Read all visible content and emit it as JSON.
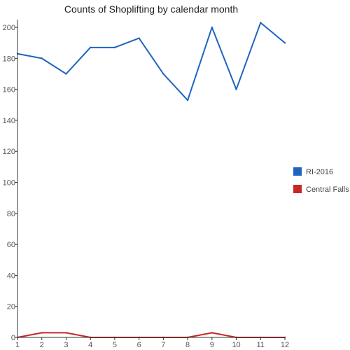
{
  "chart_data": {
    "type": "line",
    "title": "Counts of Shoplifting by calendar month",
    "xlabel": "",
    "ylabel": "",
    "x": [
      1,
      2,
      3,
      4,
      5,
      6,
      7,
      8,
      9,
      10,
      11,
      12
    ],
    "x_tick_labels": [
      "1",
      "2",
      "3",
      "4",
      "5",
      "6",
      "7",
      "8",
      "9",
      "10",
      "11",
      "12"
    ],
    "ylim": [
      0,
      205
    ],
    "y_ticks": [
      0,
      20,
      40,
      60,
      80,
      100,
      120,
      140,
      160,
      180,
      200
    ],
    "grid": false,
    "legend_position": "right",
    "series": [
      {
        "name": "RI-2016",
        "color": "#1f64c0",
        "values": [
          183,
          180,
          170,
          187,
          187,
          193,
          170,
          153,
          200,
          160,
          203,
          190
        ]
      },
      {
        "name": "Central Falls",
        "color": "#c62828",
        "values": [
          0,
          3,
          3,
          0,
          0,
          0,
          0,
          0,
          3,
          0,
          0,
          0
        ]
      }
    ]
  }
}
